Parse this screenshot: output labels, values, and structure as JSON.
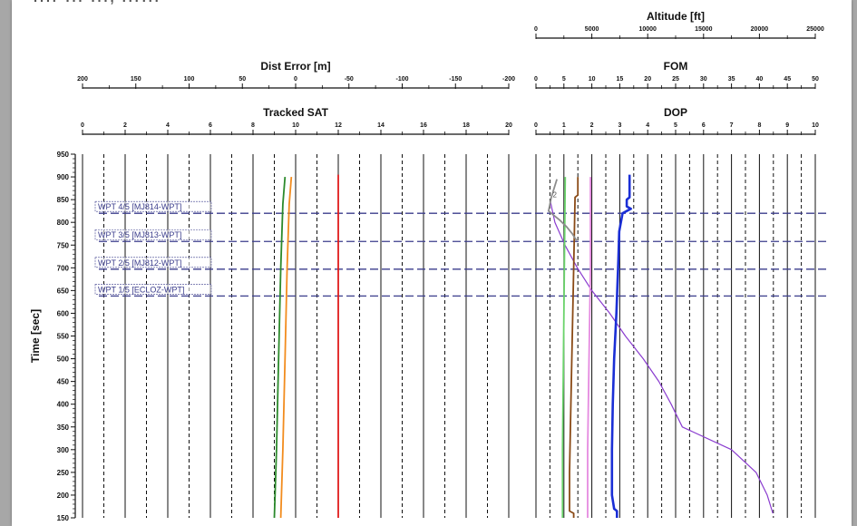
{
  "header": {
    "cut_title": "…F… …, ……"
  },
  "colors": {
    "grid": "#111111",
    "waypoint": "#3b3d8c",
    "altitude": "#8a3ccf",
    "sat_green": "#2c8a2c",
    "sat_orange": "#f28c1e",
    "red_line": "#e01b1b",
    "dop_blue": "#1b2fd6",
    "fom_pink": "#e58ae0",
    "dop_brown": "#8a4a16",
    "fom_green": "#6ad36a",
    "gray": "#8c8c8c"
  },
  "chart_data": [
    {
      "type": "line",
      "panel": "left",
      "ylabel": "Time  [sec]",
      "ylim": [
        150,
        950
      ],
      "y_ticks": [
        150,
        200,
        250,
        300,
        350,
        400,
        450,
        500,
        550,
        600,
        650,
        700,
        750,
        800,
        850,
        900,
        950
      ],
      "axes": [
        {
          "title": "Dist Error  [m]",
          "range": [
            200,
            -200
          ],
          "ticks": [
            "200",
            "150",
            "100",
            "50",
            "0",
            "-50",
            "-100",
            "-150",
            "-200"
          ]
        },
        {
          "title": "Tracked SAT",
          "range": [
            0,
            20
          ],
          "ticks": [
            "0",
            "2",
            "4",
            "6",
            "8",
            "10",
            "12",
            "14",
            "16",
            "18",
            "20"
          ]
        }
      ],
      "series": [
        {
          "axis": "Tracked SAT",
          "color": "sat_green",
          "points": [
            [
              9.5,
              900
            ],
            [
              9.4,
              840
            ],
            [
              9.3,
              700
            ],
            [
              9.2,
              500
            ],
            [
              9.1,
              300
            ],
            [
              9.0,
              150
            ]
          ]
        },
        {
          "axis": "Tracked SAT",
          "color": "sat_orange",
          "points": [
            [
              9.8,
              900
            ],
            [
              9.7,
              840
            ],
            [
              9.6,
              700
            ],
            [
              9.5,
              500
            ],
            [
              9.4,
              300
            ],
            [
              9.3,
              150
            ]
          ]
        },
        {
          "axis": "Tracked SAT",
          "color": "red_line",
          "points": [
            [
              12,
              905
            ],
            [
              12,
              150
            ]
          ]
        }
      ]
    },
    {
      "type": "line",
      "panel": "right",
      "ylim": [
        150,
        950
      ],
      "axes": [
        {
          "title": "Altitude [ft]",
          "range": [
            0,
            25000
          ],
          "ticks": [
            "0",
            "5000",
            "10000",
            "15000",
            "20000",
            "25000"
          ]
        },
        {
          "title": "FOM",
          "range": [
            0,
            50
          ],
          "ticks": [
            "0",
            "5",
            "10",
            "15",
            "20",
            "25",
            "30",
            "35",
            "40",
            "45",
            "50"
          ]
        },
        {
          "title": "DOP",
          "range": [
            0,
            10
          ],
          "ticks": [
            "0",
            "1",
            "2",
            "3",
            "4",
            "5",
            "6",
            "7",
            "8",
            "9",
            "10"
          ]
        }
      ],
      "series": [
        {
          "axis": "Altitude [ft]",
          "color": "altitude",
          "points": [
            [
              1300,
              845
            ],
            [
              1700,
              800
            ],
            [
              2600,
              750
            ],
            [
              3700,
              700
            ],
            [
              5000,
              650
            ],
            [
              6600,
              600
            ],
            [
              8000,
              550
            ],
            [
              9600,
              500
            ],
            [
              11000,
              450
            ],
            [
              12100,
              400
            ],
            [
              13100,
              350
            ],
            [
              17500,
              300
            ],
            [
              19700,
              250
            ],
            [
              20700,
              200
            ],
            [
              21200,
              160
            ]
          ]
        },
        {
          "axis": "DOP",
          "color": "dop_blue",
          "points": [
            [
              3.35,
              905
            ],
            [
              3.35,
              855
            ],
            [
              3.25,
              850
            ],
            [
              3.25,
              835
            ],
            [
              3.4,
              830
            ],
            [
              3.1,
              820
            ],
            [
              2.98,
              780
            ],
            [
              2.95,
              720
            ],
            [
              2.88,
              600
            ],
            [
              2.8,
              500
            ],
            [
              2.75,
              400
            ],
            [
              2.72,
              300
            ],
            [
              2.72,
              200
            ],
            [
              2.8,
              170
            ],
            [
              2.9,
              165
            ],
            [
              2.9,
              150
            ]
          ]
        },
        {
          "axis": "DOP",
          "color": "fom_pink",
          "points": [
            [
              1.95,
              900
            ],
            [
              1.95,
              840
            ],
            [
              1.95,
              700
            ],
            [
              1.9,
              500
            ],
            [
              1.85,
              300
            ],
            [
              1.85,
              150
            ]
          ]
        },
        {
          "axis": "DOP",
          "color": "dop_brown",
          "points": [
            [
              1.5,
              900
            ],
            [
              1.5,
              860
            ],
            [
              1.4,
              855
            ],
            [
              1.35,
              700
            ],
            [
              1.25,
              400
            ],
            [
              1.2,
              250
            ],
            [
              1.2,
              165
            ],
            [
              1.35,
              160
            ],
            [
              1.35,
              150
            ]
          ]
        },
        {
          "axis": "DOP",
          "color": "fom_green",
          "points": [
            [
              1.05,
              900
            ],
            [
              1.0,
              600
            ],
            [
              0.95,
              300
            ],
            [
              0.95,
              150
            ]
          ]
        },
        {
          "axis": "DOP",
          "color": "gray",
          "points": [
            [
              0.75,
              895
            ],
            [
              0.55,
              855
            ],
            [
              0.45,
              825
            ],
            [
              0.85,
              805
            ],
            [
              1.1,
              790
            ],
            [
              1.3,
              775
            ],
            [
              1.45,
              760
            ]
          ]
        }
      ],
      "annotations": [
        {
          "text": "2",
          "x": 0.6,
          "y": 855
        }
      ]
    }
  ],
  "waypoints": [
    {
      "label": "WPT 4/5 [MJ814-WPT]",
      "t": 820
    },
    {
      "label": "WPT 3/5 [MJ813-WPT]",
      "t": 758
    },
    {
      "label": "WPT 2/5 [MJ812-WPT]",
      "t": 697
    },
    {
      "label": "WPT 1/5 [ECLOZ-WPT]",
      "t": 638
    }
  ]
}
